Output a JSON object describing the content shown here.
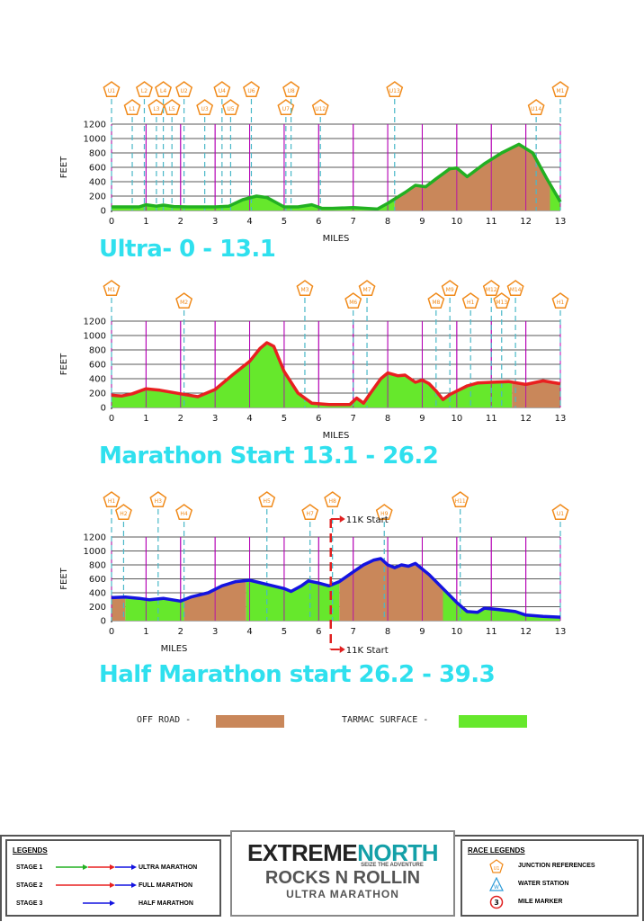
{
  "chart_data": [
    {
      "type": "area",
      "title": "Ultra- 0 - 13.1",
      "xlabel": "MILES",
      "ylabel": "FEET",
      "xlim": [
        0,
        13
      ],
      "ylim": [
        0,
        1200
      ],
      "xticks": [
        0,
        1,
        2,
        3,
        4,
        5,
        6,
        7,
        8,
        9,
        10,
        11,
        12,
        13
      ],
      "yticks": [
        0,
        200,
        400,
        600,
        800,
        1000,
        1200
      ],
      "line_color": "#22b022",
      "x": [
        0,
        0.5,
        0.8,
        1.0,
        1.3,
        1.5,
        1.8,
        2.2,
        3.0,
        3.4,
        3.8,
        4.2,
        4.5,
        5.0,
        5.4,
        5.8,
        6.1,
        6.4,
        7.0,
        7.7,
        8.0,
        8.5,
        8.8,
        9.1,
        9.4,
        9.8,
        10.0,
        10.3,
        10.8,
        11.3,
        11.8,
        12.2,
        12.6,
        13.0
      ],
      "y": [
        50,
        50,
        50,
        80,
        60,
        75,
        55,
        50,
        50,
        60,
        150,
        200,
        180,
        50,
        50,
        80,
        30,
        30,
        40,
        20,
        100,
        250,
        350,
        330,
        440,
        580,
        590,
        470,
        650,
        800,
        920,
        800,
        450,
        120
      ],
      "surface": [
        {
          "from": 0,
          "to": 8.2,
          "type": "tarmac"
        },
        {
          "from": 8.2,
          "to": 12.7,
          "type": "off-road"
        },
        {
          "from": 12.7,
          "to": 13,
          "type": "tarmac"
        }
      ],
      "junction_markers": [
        {
          "label": "U1",
          "x": 0
        },
        {
          "label": "L1",
          "x": 0.6
        },
        {
          "label": "L2",
          "x": 0.95
        },
        {
          "label": "L3",
          "x": 1.3
        },
        {
          "label": "L4",
          "x": 1.5
        },
        {
          "label": "L5",
          "x": 1.75
        },
        {
          "label": "U2",
          "x": 2.1
        },
        {
          "label": "U3",
          "x": 2.7
        },
        {
          "label": "U4",
          "x": 3.2
        },
        {
          "label": "U5",
          "x": 3.45
        },
        {
          "label": "U6",
          "x": 4.05
        },
        {
          "label": "U7",
          "x": 5.05
        },
        {
          "label": "U8",
          "x": 5.2
        },
        {
          "label": "U12",
          "x": 6.05
        },
        {
          "label": "U13",
          "x": 8.2
        },
        {
          "label": "U14",
          "x": 12.3
        },
        {
          "label": "M1",
          "x": 13
        }
      ]
    },
    {
      "type": "area",
      "title": "Marathon Start  13.1 - 26.2",
      "xlabel": "MILES",
      "ylabel": "FEET",
      "xlim": [
        0,
        13
      ],
      "ylim": [
        0,
        1200
      ],
      "xticks": [
        0,
        1,
        2,
        3,
        4,
        5,
        6,
        7,
        8,
        9,
        10,
        11,
        12,
        13
      ],
      "yticks": [
        0,
        200,
        400,
        600,
        800,
        1000,
        1200
      ],
      "line_color": "#e82020",
      "x": [
        0,
        0.3,
        0.6,
        1.0,
        1.4,
        2.0,
        2.5,
        3.0,
        3.5,
        4.0,
        4.3,
        4.5,
        4.7,
        5.0,
        5.4,
        5.8,
        6.3,
        6.9,
        7.1,
        7.3,
        7.5,
        7.8,
        8.0,
        8.3,
        8.5,
        8.8,
        9.0,
        9.2,
        9.4,
        9.6,
        9.8,
        10.3,
        10.6,
        11.0,
        11.5,
        12.0,
        12.5,
        13.0
      ],
      "y": [
        170,
        160,
        190,
        260,
        240,
        190,
        150,
        250,
        450,
        640,
        820,
        900,
        850,
        500,
        200,
        60,
        40,
        40,
        130,
        60,
        200,
        400,
        480,
        440,
        450,
        350,
        380,
        330,
        230,
        110,
        180,
        300,
        340,
        350,
        360,
        320,
        370,
        330
      ],
      "surface": [
        {
          "from": 0,
          "to": 11.6,
          "type": "tarmac"
        },
        {
          "from": 11.6,
          "to": 13,
          "type": "off-road"
        }
      ],
      "junction_markers": [
        {
          "label": "M1",
          "x": 0
        },
        {
          "label": "M2",
          "x": 2.1
        },
        {
          "label": "M3",
          "x": 5.6
        },
        {
          "label": "M6",
          "x": 7.0
        },
        {
          "label": "M7",
          "x": 7.4
        },
        {
          "label": "M8",
          "x": 9.4
        },
        {
          "label": "M9",
          "x": 9.8
        },
        {
          "label": "H1",
          "x": 10.4
        },
        {
          "label": "M12",
          "x": 11.0
        },
        {
          "label": "M13",
          "x": 11.3
        },
        {
          "label": "M14",
          "x": 11.7
        },
        {
          "label": "H1",
          "x": 13
        }
      ]
    },
    {
      "type": "area",
      "title": "Half Marathon start 26.2 - 39.3",
      "xlabel": "MILES",
      "ylabel": "FEET",
      "xlim": [
        0,
        13
      ],
      "ylim": [
        0,
        1200
      ],
      "xticks": [
        0,
        1,
        2,
        3,
        4,
        5,
        6,
        7,
        8,
        9,
        10,
        11,
        12,
        13
      ],
      "yticks": [
        0,
        200,
        400,
        600,
        800,
        1000,
        1200
      ],
      "line_color": "#1414e0",
      "x": [
        0,
        0.4,
        0.8,
        1.1,
        1.5,
        2.0,
        2.3,
        2.8,
        3.2,
        3.6,
        4.0,
        4.5,
        5.0,
        5.2,
        5.5,
        5.7,
        6.0,
        6.3,
        6.6,
        7.0,
        7.3,
        7.6,
        7.8,
        8.0,
        8.2,
        8.4,
        8.6,
        8.8,
        9.2,
        9.6,
        10.0,
        10.3,
        10.6,
        10.8,
        11.2,
        11.7,
        12.0,
        12.5,
        13.0
      ],
      "y": [
        330,
        340,
        320,
        300,
        320,
        280,
        340,
        400,
        500,
        560,
        580,
        520,
        460,
        420,
        500,
        570,
        540,
        500,
        560,
        700,
        800,
        870,
        890,
        800,
        760,
        800,
        780,
        820,
        660,
        460,
        260,
        130,
        120,
        180,
        160,
        130,
        80,
        60,
        50
      ],
      "surface": [
        {
          "from": 0,
          "to": 0.4,
          "type": "off-road"
        },
        {
          "from": 0.4,
          "to": 2.1,
          "type": "tarmac"
        },
        {
          "from": 2.1,
          "to": 3.9,
          "type": "off-road"
        },
        {
          "from": 3.9,
          "to": 6.6,
          "type": "tarmac"
        },
        {
          "from": 6.6,
          "to": 9.6,
          "type": "off-road"
        },
        {
          "from": 9.6,
          "to": 13,
          "type": "tarmac"
        }
      ],
      "start_marker": {
        "x": 6.35,
        "label": "11K Start"
      },
      "junction_markers": [
        {
          "label": "H1",
          "x": 0
        },
        {
          "label": "H2",
          "x": 0.35
        },
        {
          "label": "H3",
          "x": 1.35
        },
        {
          "label": "H4",
          "x": 2.1
        },
        {
          "label": "H5",
          "x": 4.5
        },
        {
          "label": "H7",
          "x": 5.75
        },
        {
          "label": "H8",
          "x": 6.4
        },
        {
          "label": "H9",
          "x": 7.9
        },
        {
          "label": "H11",
          "x": 10.1
        },
        {
          "label": "U1",
          "x": 13
        }
      ]
    }
  ],
  "colors": {
    "tarmac": "#66e82c",
    "offroad": "#c9875a",
    "marker": "#f08a1a",
    "teal": "#2fe0ee",
    "grid": "#b400b4",
    "dash": "#4ab8c8"
  },
  "legend_surface": {
    "off_road": "OFF ROAD -",
    "tarmac": "TARMAC SURFACE -"
  },
  "legends": {
    "title": "LEGENDS",
    "rows": [
      {
        "stage": "STAGE 1",
        "label": "ULTRA MARATHON"
      },
      {
        "stage": "STAGE 2",
        "label": "FULL MARATHON"
      },
      {
        "stage": "STAGE 3",
        "label": "HALF MARATHON"
      }
    ]
  },
  "race_legends": {
    "title": "RACE LEGENDS",
    "items": [
      {
        "icon": "junction-pentagon-icon",
        "label": "JUNCTION REFERENCES",
        "glyph": "U1"
      },
      {
        "icon": "water-station-icon",
        "label": "WATER STATION",
        "glyph": "W"
      },
      {
        "icon": "mile-marker-icon",
        "label": "MILE MARKER",
        "glyph": "3"
      }
    ]
  },
  "logo": {
    "line1_a": "EXTREME",
    "line1_b": "NORTH",
    "tagline": "SEIZE THE ADVENTURE",
    "line2": "ROCKS N ROLLIN",
    "line3": "ULTRA MARATHON"
  }
}
